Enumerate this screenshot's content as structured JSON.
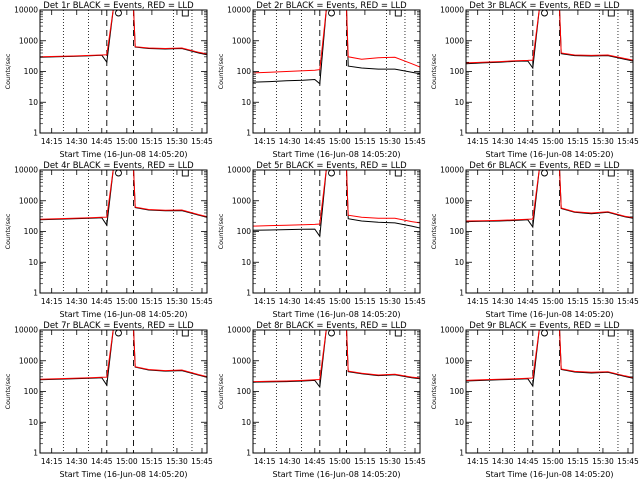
{
  "colors": {
    "events": "#000000",
    "lld": "#ff0000",
    "axes": "#000000",
    "background": "#ffffff"
  },
  "x_tick_labels": [
    "14:15",
    "14:30",
    "14:45",
    "15:00",
    "15:15",
    "15:30",
    "15:45"
  ],
  "y_tick_labels": [
    "1",
    "10",
    "100",
    "1000",
    "10000"
  ],
  "chart_data": [
    {
      "type": "line",
      "title": "Det 1r BLACK = Events, RED = LLD",
      "xlabel": "Start Time (16-Jun-08 14:05:20)",
      "ylabel": "Counts/sec",
      "yscale": "log",
      "ylim": [
        1,
        10000
      ],
      "xticks": [
        "14:15",
        "14:30",
        "14:45",
        "15:00",
        "15:15",
        "15:30",
        "15:45"
      ],
      "x_minutes": [
        0,
        100
      ],
      "vlines_dotted": [
        14,
        29,
        80,
        91
      ],
      "vlines_dashed": [
        40,
        56
      ],
      "markers": {
        "circle": 47,
        "square": 87
      },
      "x": [
        0,
        10,
        20,
        30,
        37,
        40,
        44,
        48,
        56,
        57,
        65,
        75,
        85,
        95,
        100
      ],
      "series": [
        {
          "name": "BLACK = Events",
          "values": [
            290,
            300,
            310,
            325,
            340,
            200,
            12000,
            12000,
            12000,
            620,
            560,
            540,
            560,
            400,
            350
          ]
        },
        {
          "name": "RED = LLD",
          "values": [
            300,
            310,
            320,
            335,
            345,
            350,
            12000,
            12000,
            12000,
            640,
            580,
            560,
            580,
            420,
            370
          ]
        }
      ]
    },
    {
      "type": "line",
      "title": "Det 2r BLACK = Events, RED = LLD",
      "xlabel": "Start Time (16-Jun-08 14:05:20)",
      "ylabel": "Counts/sec",
      "yscale": "log",
      "ylim": [
        1,
        10000
      ],
      "xticks": [
        "14:15",
        "14:30",
        "14:45",
        "15:00",
        "15:15",
        "15:30",
        "15:45"
      ],
      "x_minutes": [
        0,
        100
      ],
      "vlines_dotted": [
        14,
        29,
        80,
        91
      ],
      "vlines_dashed": [
        40,
        56
      ],
      "markers": {
        "circle": 47,
        "square": 87
      },
      "x": [
        0,
        10,
        20,
        30,
        37,
        40,
        44,
        48,
        56,
        57,
        65,
        75,
        85,
        95,
        100
      ],
      "series": [
        {
          "name": "BLACK = Events",
          "values": [
            45,
            47,
            50,
            52,
            55,
            40,
            12000,
            12000,
            12000,
            150,
            130,
            120,
            120,
            95,
            85
          ]
        },
        {
          "name": "RED = LLD",
          "values": [
            90,
            95,
            100,
            105,
            110,
            115,
            12000,
            12000,
            12000,
            300,
            250,
            280,
            290,
            180,
            140
          ]
        }
      ]
    },
    {
      "type": "line",
      "title": "Det 3r BLACK = Events, RED = LLD",
      "xlabel": "Start Time (16-Jun-08 14:05:20)",
      "ylabel": "Counts/sec",
      "yscale": "log",
      "ylim": [
        1,
        10000
      ],
      "xticks": [
        "14:15",
        "14:30",
        "14:45",
        "15:00",
        "15:15",
        "15:30",
        "15:45"
      ],
      "x_minutes": [
        0,
        100
      ],
      "vlines_dotted": [
        14,
        29,
        80,
        91
      ],
      "vlines_dashed": [
        40,
        56
      ],
      "markers": {
        "circle": 47,
        "square": 87
      },
      "x": [
        0,
        10,
        20,
        30,
        37,
        40,
        44,
        48,
        56,
        57,
        65,
        75,
        85,
        95,
        100
      ],
      "series": [
        {
          "name": "BLACK = Events",
          "values": [
            180,
            190,
            200,
            215,
            220,
            130,
            12000,
            12000,
            12000,
            380,
            330,
            320,
            330,
            250,
            220
          ]
        },
        {
          "name": "RED = LLD",
          "values": [
            190,
            200,
            210,
            225,
            230,
            235,
            12000,
            12000,
            12000,
            400,
            345,
            335,
            345,
            265,
            235
          ]
        }
      ]
    },
    {
      "type": "line",
      "title": "Det 4r BLACK = Events, RED = LLD",
      "xlabel": "Start Time (16-Jun-08 14:05:20)",
      "ylabel": "Counts/sec",
      "yscale": "log",
      "ylim": [
        1,
        10000
      ],
      "xticks": [
        "14:15",
        "14:30",
        "14:45",
        "15:00",
        "15:15",
        "15:30",
        "15:45"
      ],
      "x_minutes": [
        0,
        100
      ],
      "vlines_dotted": [
        14,
        29,
        80,
        91
      ],
      "vlines_dashed": [
        40,
        56
      ],
      "markers": {
        "circle": 47,
        "square": 87
      },
      "x": [
        0,
        10,
        20,
        30,
        37,
        40,
        44,
        48,
        56,
        57,
        65,
        75,
        85,
        95,
        100
      ],
      "series": [
        {
          "name": "BLACK = Events",
          "values": [
            240,
            250,
            260,
            270,
            280,
            160,
            12000,
            12000,
            12000,
            600,
            500,
            470,
            480,
            340,
            290
          ]
        },
        {
          "name": "RED = LLD",
          "values": [
            250,
            260,
            270,
            280,
            290,
            295,
            12000,
            12000,
            12000,
            620,
            520,
            490,
            500,
            355,
            305
          ]
        }
      ]
    },
    {
      "type": "line",
      "title": "Det 5r BLACK = Events, RED = LLD",
      "xlabel": "Start Time (16-Jun-08 14:05:20)",
      "ylabel": "Counts/sec",
      "yscale": "log",
      "ylim": [
        1,
        10000
      ],
      "xticks": [
        "14:15",
        "14:30",
        "14:45",
        "15:00",
        "15:15",
        "15:30",
        "15:45"
      ],
      "x_minutes": [
        0,
        100
      ],
      "vlines_dotted": [
        14,
        29,
        80,
        91
      ],
      "vlines_dashed": [
        40,
        56
      ],
      "markers": {
        "circle": 47,
        "square": 87
      },
      "x": [
        0,
        10,
        20,
        30,
        37,
        40,
        44,
        48,
        56,
        57,
        65,
        75,
        85,
        95,
        100
      ],
      "series": [
        {
          "name": "BLACK = Events",
          "values": [
            110,
            112,
            115,
            118,
            120,
            70,
            12000,
            12000,
            12000,
            260,
            220,
            200,
            190,
            150,
            130
          ]
        },
        {
          "name": "RED = LLD",
          "values": [
            150,
            155,
            160,
            165,
            170,
            175,
            12000,
            12000,
            12000,
            340,
            290,
            270,
            270,
            210,
            190
          ]
        }
      ]
    },
    {
      "type": "line",
      "title": "Det 6r BLACK = Events, RED = LLD",
      "xlabel": "Start Time (16-Jun-08 14:05:20)",
      "ylabel": "Counts/sec",
      "yscale": "log",
      "ylim": [
        1,
        10000
      ],
      "xticks": [
        "14:15",
        "14:30",
        "14:45",
        "15:00",
        "15:15",
        "15:30",
        "15:45"
      ],
      "x_minutes": [
        0,
        100
      ],
      "vlines_dotted": [
        14,
        29,
        80,
        91
      ],
      "vlines_dashed": [
        40,
        56
      ],
      "markers": {
        "circle": 47,
        "square": 87
      },
      "x": [
        0,
        10,
        20,
        30,
        37,
        40,
        44,
        48,
        56,
        57,
        65,
        75,
        85,
        95,
        100
      ],
      "series": [
        {
          "name": "BLACK = Events",
          "values": [
            210,
            215,
            220,
            230,
            240,
            140,
            12000,
            12000,
            12000,
            560,
            420,
            380,
            420,
            300,
            270
          ]
        },
        {
          "name": "RED = LLD",
          "values": [
            220,
            225,
            230,
            240,
            250,
            255,
            12000,
            12000,
            12000,
            580,
            440,
            400,
            440,
            315,
            285
          ]
        }
      ]
    },
    {
      "type": "line",
      "title": "Det 7r BLACK = Events, RED = LLD",
      "xlabel": "Start Time (16-Jun-08 14:05:20)",
      "ylabel": "Counts/sec",
      "yscale": "log",
      "ylim": [
        1,
        10000
      ],
      "xticks": [
        "14:15",
        "14:30",
        "14:45",
        "15:00",
        "15:15",
        "15:30",
        "15:45"
      ],
      "x_minutes": [
        0,
        100
      ],
      "vlines_dotted": [
        14,
        29,
        80,
        91
      ],
      "vlines_dashed": [
        40,
        56
      ],
      "markers": {
        "circle": 47,
        "square": 87
      },
      "x": [
        0,
        10,
        20,
        30,
        37,
        40,
        44,
        48,
        56,
        57,
        65,
        75,
        85,
        95,
        100
      ],
      "series": [
        {
          "name": "BLACK = Events",
          "values": [
            240,
            250,
            260,
            270,
            280,
            160,
            12000,
            12000,
            12000,
            620,
            500,
            460,
            480,
            340,
            290
          ]
        },
        {
          "name": "RED = LLD",
          "values": [
            250,
            260,
            270,
            280,
            290,
            295,
            12000,
            12000,
            12000,
            640,
            520,
            480,
            500,
            355,
            305
          ]
        }
      ]
    },
    {
      "type": "line",
      "title": "Det 8r BLACK = Events, RED = LLD",
      "xlabel": "Start Time (16-Jun-08 14:05:20)",
      "ylabel": "Counts/sec",
      "yscale": "log",
      "ylim": [
        1,
        10000
      ],
      "xticks": [
        "14:15",
        "14:30",
        "14:45",
        "15:00",
        "15:15",
        "15:30",
        "15:45"
      ],
      "x_minutes": [
        0,
        100
      ],
      "vlines_dotted": [
        14,
        29,
        80,
        91
      ],
      "vlines_dashed": [
        40,
        56
      ],
      "markers": {
        "circle": 47,
        "square": 87
      },
      "x": [
        0,
        10,
        20,
        30,
        37,
        40,
        44,
        48,
        56,
        57,
        65,
        75,
        85,
        95,
        100
      ],
      "series": [
        {
          "name": "BLACK = Events",
          "values": [
            200,
            205,
            210,
            220,
            230,
            140,
            12000,
            12000,
            12000,
            440,
            380,
            330,
            350,
            280,
            260
          ]
        },
        {
          "name": "RED = LLD",
          "values": [
            210,
            215,
            220,
            230,
            240,
            245,
            12000,
            12000,
            12000,
            460,
            395,
            345,
            365,
            295,
            275
          ]
        }
      ]
    },
    {
      "type": "line",
      "title": "Det 9r BLACK = Events, RED = LLD",
      "xlabel": "Start Time (16-Jun-08 14:05:20)",
      "ylabel": "Counts/sec",
      "yscale": "log",
      "ylim": [
        1,
        10000
      ],
      "xticks": [
        "14:15",
        "14:30",
        "14:45",
        "15:00",
        "15:15",
        "15:30",
        "15:45"
      ],
      "x_minutes": [
        0,
        100
      ],
      "vlines_dotted": [
        14,
        29,
        80,
        91
      ],
      "vlines_dashed": [
        40,
        56
      ],
      "markers": {
        "circle": 47,
        "square": 87
      },
      "x": [
        0,
        10,
        20,
        30,
        37,
        40,
        44,
        48,
        56,
        57,
        65,
        75,
        85,
        95,
        100
      ],
      "series": [
        {
          "name": "BLACK = Events",
          "values": [
            220,
            230,
            240,
            250,
            260,
            150,
            12000,
            12000,
            12000,
            520,
            430,
            400,
            420,
            310,
            270
          ]
        },
        {
          "name": "RED = LLD",
          "values": [
            230,
            240,
            250,
            260,
            270,
            275,
            12000,
            12000,
            12000,
            540,
            450,
            420,
            440,
            325,
            285
          ]
        }
      ]
    }
  ]
}
